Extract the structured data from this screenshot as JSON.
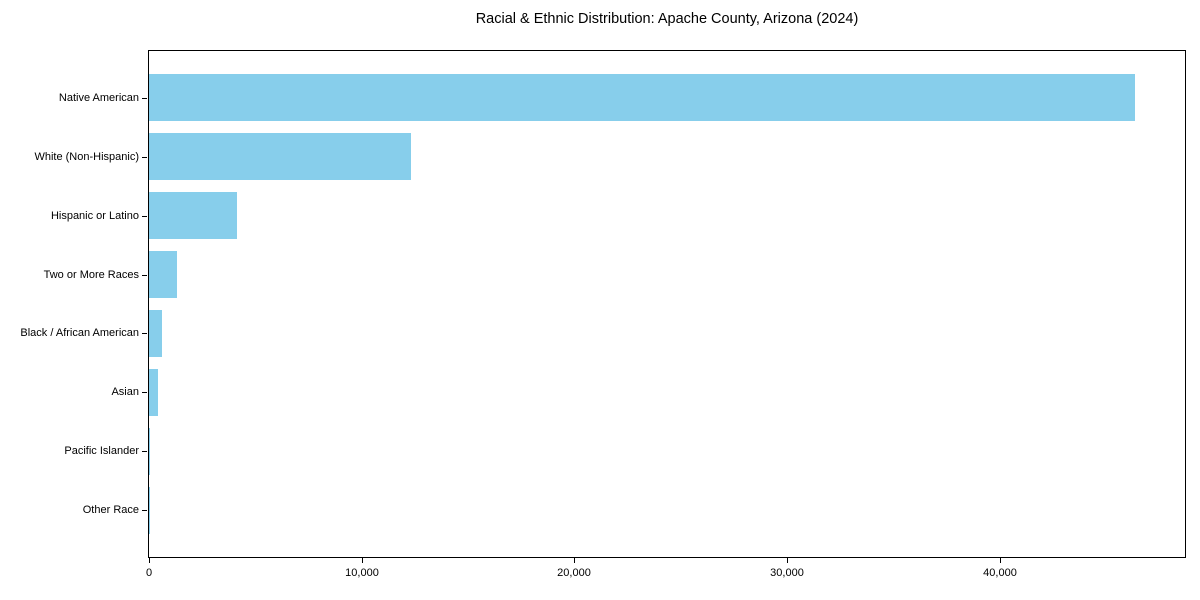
{
  "chart_data": {
    "type": "bar",
    "orientation": "horizontal",
    "title": "Racial & Ethnic Distribution: Apache County, Arizona (2024)",
    "categories": [
      "Native American",
      "White (Non-Hispanic)",
      "Hispanic or Latino",
      "Two or More Races",
      "Black / African American",
      "Asian",
      "Pacific Islander",
      "Other Race"
    ],
    "values": [
      46350,
      12320,
      4150,
      1330,
      630,
      440,
      60,
      30
    ],
    "xlabel": "",
    "ylabel": "",
    "xlim": [
      0,
      48700
    ],
    "x_ticks": [
      0,
      10000,
      20000,
      30000,
      40000
    ],
    "x_tick_labels": [
      "0",
      "10,000",
      "20,000",
      "30,000",
      "40,000"
    ],
    "bar_color": "#87CEEB",
    "spine_color": "#000000",
    "grid": false,
    "legend": false
  }
}
